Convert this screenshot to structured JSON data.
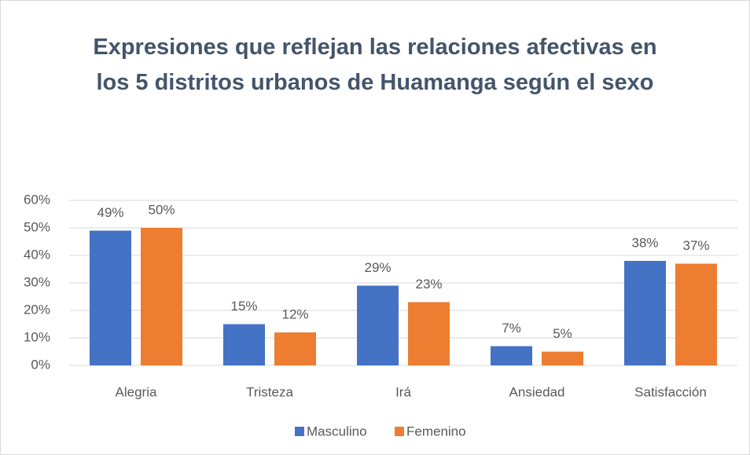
{
  "chart_data": {
    "type": "bar",
    "title": "Expresiones que reflejan las relaciones afectivas en los 5 distritos urbanos de Huamanga según el sexo",
    "categories": [
      "Alegria",
      "Tristeza",
      "Irá",
      "Ansiedad",
      "Satisfacción"
    ],
    "series": [
      {
        "name": "Masculino",
        "color": "#4472c4",
        "values": [
          49,
          15,
          29,
          7,
          38
        ],
        "value_labels": [
          "49%",
          "15%",
          "29%",
          "7%",
          "38%"
        ]
      },
      {
        "name": "Femenino",
        "color": "#ed7d31",
        "values": [
          50,
          12,
          23,
          5,
          37
        ],
        "value_labels": [
          "50%",
          "12%",
          "23%",
          "5%",
          "37%"
        ]
      }
    ],
    "ylim": [
      0,
      60
    ],
    "yticks": [
      {
        "value": 0,
        "label": "0%"
      },
      {
        "value": 10,
        "label": "10%"
      },
      {
        "value": 20,
        "label": "20%"
      },
      {
        "value": 30,
        "label": "30%"
      },
      {
        "value": 40,
        "label": "40%"
      },
      {
        "value": 50,
        "label": "50%"
      },
      {
        "value": 60,
        "label": "60%"
      }
    ],
    "grid": true,
    "legend": "bottom"
  }
}
